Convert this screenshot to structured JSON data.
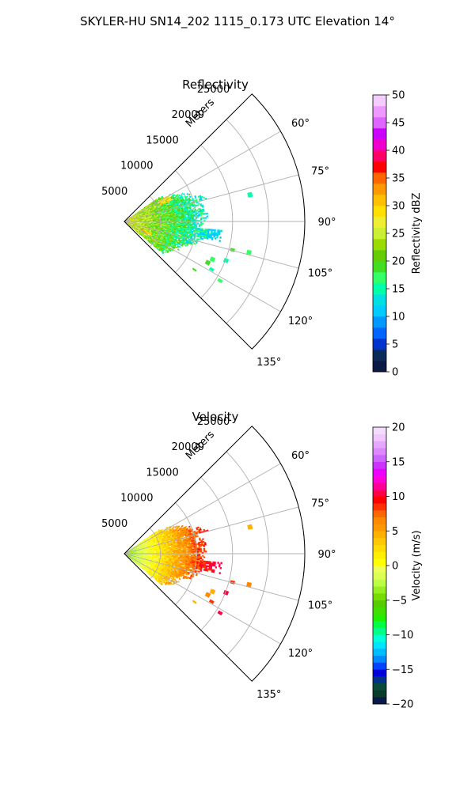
{
  "figure": {
    "suptitle": "SKYLER-HU  SN14_202  1115_0.173 UTC Elevation 14°"
  },
  "chart_data": [
    {
      "type": "heatmap",
      "projection": "polar-sector",
      "title": "Reflectivity",
      "radial_axis_label": "Meters",
      "radial_ticks": [
        "5000",
        "10000",
        "15000",
        "20000",
        "25000"
      ],
      "radial_tick_values": [
        5000,
        10000,
        15000,
        20000,
        25000
      ],
      "rlim": [
        0,
        25000
      ],
      "theta_ticks": [
        "60°",
        "75°",
        "90°",
        "105°",
        "120°",
        "135°"
      ],
      "theta_tick_values": [
        60,
        75,
        90,
        105,
        120,
        135
      ],
      "theta_range_deg": [
        45,
        135
      ],
      "grid": true,
      "colorbar": {
        "label": "Reflectivity dBZ",
        "range": [
          0,
          50
        ],
        "ticks": [
          "0",
          "5",
          "10",
          "15",
          "20",
          "25",
          "30",
          "35",
          "40",
          "45",
          "50"
        ],
        "tick_values": [
          0,
          5,
          10,
          15,
          20,
          25,
          30,
          35,
          40,
          45,
          50
        ]
      },
      "data_extent": {
        "azimuth_deg": [
          55,
          130
        ],
        "range_m": [
          0,
          12000
        ],
        "value_range": [
          10,
          38
        ]
      }
    },
    {
      "type": "heatmap",
      "projection": "polar-sector",
      "title": "Velocity",
      "radial_axis_label": "Meters",
      "radial_ticks": [
        "5000",
        "10000",
        "15000",
        "20000",
        "25000"
      ],
      "radial_tick_values": [
        5000,
        10000,
        15000,
        20000,
        25000
      ],
      "rlim": [
        0,
        25000
      ],
      "theta_ticks": [
        "60°",
        "75°",
        "90°",
        "105°",
        "120°",
        "135°"
      ],
      "theta_tick_values": [
        60,
        75,
        90,
        105,
        120,
        135
      ],
      "theta_range_deg": [
        45,
        135
      ],
      "grid": true,
      "colorbar": {
        "label": "Velocity (m/s)",
        "range": [
          -20,
          20
        ],
        "ticks": [
          "−20",
          "−15",
          "−10",
          "−5",
          "0",
          "5",
          "10",
          "15",
          "20"
        ],
        "tick_values": [
          -20,
          -15,
          -10,
          -5,
          0,
          5,
          10,
          15,
          20
        ]
      },
      "data_extent": {
        "azimuth_deg": [
          55,
          130
        ],
        "range_m": [
          0,
          12000
        ],
        "value_range": [
          -5,
          10
        ]
      }
    }
  ]
}
